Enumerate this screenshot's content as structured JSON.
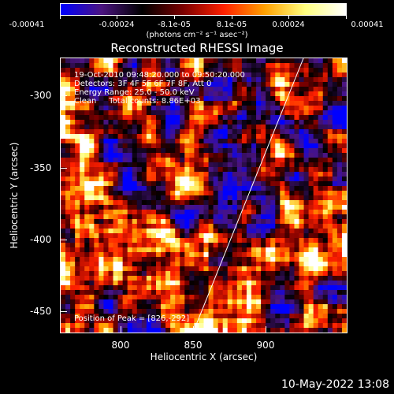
{
  "colorbar": {
    "ticks": [
      "-0.00041",
      "-0.00024",
      "-8.1e-05",
      "8.1e-05",
      "0.00024",
      "0.00041"
    ],
    "unit": "(photons cm⁻² s⁻¹ asec⁻²)",
    "colors": [
      "#0000ff",
      "#4b1480",
      "#000000",
      "#7a0000",
      "#ff2000",
      "#ffa000",
      "#ffff80",
      "#ffffff"
    ]
  },
  "title": "Reconstructed RHESSI Image",
  "annotations": {
    "time": "19-Oct-2010 09:48:20.000 to 09:50:20.000",
    "detectors": "Detectors: 3F 4F 5F 6F 7F 8F, Att 0",
    "energy": "Energy Range: 25.0 - 50.0 keV",
    "clean": "Clean     Total counts: 8.86E+03",
    "peak": "Position of Peak = [826,-292]"
  },
  "axes": {
    "xlabel": "Heliocentric X (arcsec)",
    "ylabel": "Heliocentric Y (arcsec)",
    "xticks": [
      "800",
      "850",
      "900"
    ],
    "yticks": [
      "-300",
      "-350",
      "-400",
      "-450"
    ]
  },
  "timestamp": "10-May-2022 13:08"
}
